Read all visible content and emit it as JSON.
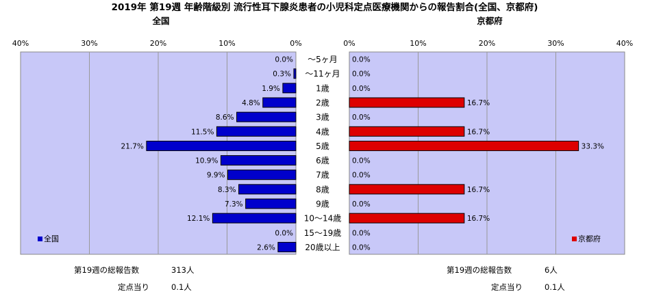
{
  "chart_data": {
    "type": "bar",
    "title": "2019年 第19週 年齢階級別 流行性耳下腺炎患者の小児科定点医療機関からの報告割合(全国、京都府)",
    "categories": [
      "～5ヶ月",
      "～11ヶ月",
      "1歳",
      "2歳",
      "3歳",
      "4歳",
      "5歳",
      "6歳",
      "7歳",
      "8歳",
      "9歳",
      "10～14歳",
      "15～19歳",
      "20歳以上"
    ],
    "axis_ticks": [
      "40%",
      "30%",
      "20%",
      "10%",
      "0%"
    ],
    "axis_ticks_right": [
      "0%",
      "10%",
      "20%",
      "30%",
      "40%"
    ],
    "xlim": [
      0,
      40
    ],
    "grid": true,
    "series": [
      {
        "name": "全国",
        "panel_title": "全国",
        "legend": "全国",
        "color": "#0000cc",
        "values": [
          0.0,
          0.3,
          1.9,
          4.8,
          8.6,
          11.5,
          21.7,
          10.9,
          9.9,
          8.3,
          7.3,
          12.1,
          0.0,
          2.6
        ],
        "labels": [
          "0.0%",
          "0.3%",
          "1.9%",
          "4.8%",
          "8.6%",
          "11.5%",
          "21.7%",
          "10.9%",
          "9.9%",
          "8.3%",
          "7.3%",
          "12.1%",
          "0.0%",
          "2.6%"
        ]
      },
      {
        "name": "京都府",
        "panel_title": "京都府",
        "legend": "京都府",
        "color": "#dd0000",
        "values": [
          0.0,
          0.0,
          0.0,
          16.7,
          0.0,
          16.7,
          33.3,
          0.0,
          0.0,
          16.7,
          0.0,
          16.7,
          0.0,
          0.0
        ],
        "labels": [
          "0.0%",
          "0.0%",
          "0.0%",
          "16.7%",
          "0.0%",
          "16.7%",
          "33.3%",
          "0.0%",
          "0.0%",
          "16.7%",
          "0.0%",
          "16.7%",
          "0.0%",
          "0.0%"
        ]
      }
    ],
    "summary": {
      "left": {
        "total_label": "第19週の総報告数",
        "total_value": "313人",
        "per_label": "定点当り",
        "per_value": "0.1人"
      },
      "right": {
        "total_label": "第19週の総報告数",
        "total_value": "6人",
        "per_label": "定点当り",
        "per_value": "0.1人"
      }
    }
  }
}
